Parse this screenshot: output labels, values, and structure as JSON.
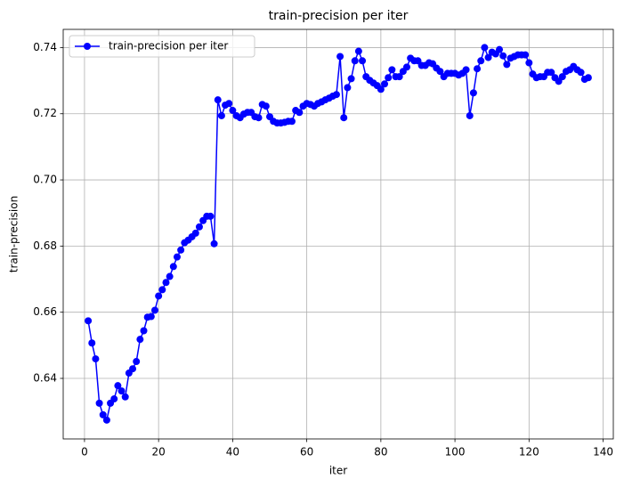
{
  "chart_data": {
    "type": "line",
    "title": "train-precision per iter",
    "x_label": "iter",
    "y_label": "train-precision",
    "x": [
      1,
      2,
      3,
      4,
      5,
      6,
      7,
      8,
      9,
      10,
      11,
      12,
      13,
      14,
      15,
      16,
      17,
      18,
      19,
      20,
      21,
      22,
      23,
      24,
      25,
      26,
      27,
      28,
      29,
      30,
      31,
      32,
      33,
      34,
      35,
      36,
      37,
      38,
      39,
      40,
      41,
      42,
      43,
      44,
      45,
      46,
      47,
      48,
      49,
      50,
      51,
      52,
      53,
      54,
      55,
      56,
      57,
      58,
      59,
      60,
      61,
      62,
      63,
      64,
      65,
      66,
      67,
      68,
      69,
      70,
      71,
      72,
      73,
      74,
      75,
      76,
      77,
      78,
      79,
      80,
      81,
      82,
      83,
      84,
      85,
      86,
      87,
      88,
      89,
      90,
      91,
      92,
      93,
      94,
      95,
      96,
      97,
      98,
      99,
      100,
      101,
      102,
      103,
      104,
      105,
      106,
      107,
      108,
      109,
      110,
      111,
      112,
      113,
      114,
      115,
      116,
      117,
      118,
      119,
      120,
      121,
      122,
      123,
      124,
      125,
      126,
      127,
      128,
      129,
      130,
      131,
      132,
      133,
      134,
      135,
      136
    ],
    "series": [
      {
        "name": "train-precision per iter",
        "color": "#0000ff",
        "values": [
          0.6574,
          0.6507,
          0.6459,
          0.6325,
          0.629,
          0.6274,
          0.6325,
          0.6338,
          0.6378,
          0.6362,
          0.6344,
          0.6416,
          0.6429,
          0.6451,
          0.6518,
          0.6544,
          0.6585,
          0.6587,
          0.6606,
          0.6649,
          0.6668,
          0.669,
          0.6708,
          0.6738,
          0.6767,
          0.6788,
          0.681,
          0.6818,
          0.6828,
          0.6839,
          0.6858,
          0.6877,
          0.689,
          0.689,
          0.6807,
          0.7242,
          0.7194,
          0.7226,
          0.7231,
          0.721,
          0.7194,
          0.7188,
          0.7199,
          0.7204,
          0.7204,
          0.7191,
          0.7188,
          0.7228,
          0.7223,
          0.7191,
          0.7177,
          0.7172,
          0.7172,
          0.7174,
          0.7177,
          0.7177,
          0.721,
          0.7204,
          0.7223,
          0.7231,
          0.7228,
          0.7223,
          0.7231,
          0.7236,
          0.7242,
          0.7247,
          0.7253,
          0.7258,
          0.7373,
          0.7188,
          0.7279,
          0.7306,
          0.736,
          0.7389,
          0.736,
          0.7312,
          0.7301,
          0.7293,
          0.7285,
          0.7274,
          0.729,
          0.7309,
          0.7333,
          0.7312,
          0.7312,
          0.7328,
          0.7341,
          0.7368,
          0.736,
          0.736,
          0.7346,
          0.7346,
          0.7354,
          0.7351,
          0.7338,
          0.7328,
          0.7312,
          0.7322,
          0.7322,
          0.7322,
          0.7317,
          0.7322,
          0.7333,
          0.7194,
          0.7263,
          0.7336,
          0.736,
          0.74,
          0.737,
          0.7386,
          0.7381,
          0.7394,
          0.7375,
          0.7349,
          0.7368,
          0.7373,
          0.7378,
          0.7378,
          0.7378,
          0.7354,
          0.732,
          0.7309,
          0.7312,
          0.7312,
          0.7325,
          0.7325,
          0.7309,
          0.7298,
          0.7312,
          0.7328,
          0.7333,
          0.7343,
          0.7333,
          0.7325,
          0.7304,
          0.7309
        ]
      }
    ],
    "xlim": [
      -5.75,
      142.75
    ],
    "ylim": [
      0.6217,
      0.7455
    ],
    "xticks": [
      0,
      20,
      40,
      60,
      80,
      100,
      120,
      140
    ],
    "yticks": [
      0.64,
      0.66,
      0.68,
      {
        "value": 0.7,
        "label": "0.70"
      },
      0.72,
      0.74
    ],
    "grid": true,
    "legend": "upper left"
  }
}
